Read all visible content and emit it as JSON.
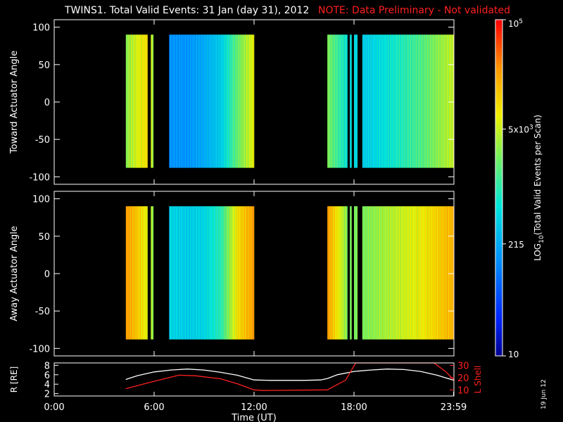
{
  "header": {
    "title": "TWINS1. Total Valid Events: 31 Jan (day  31), 2012",
    "note": "NOTE: Data Preliminary - Not validated"
  },
  "date_stamp": "19 Jun 12",
  "colors": {
    "note": "#ff2020",
    "background": "#000000",
    "axes": "#ffffff",
    "r_line": "#ffffff",
    "lshell_line": "#ff2020"
  },
  "chart_data": [
    {
      "type": "heatmap",
      "panel": "toward",
      "ylabel": "Toward Actuator Angle",
      "ylim": [
        -110,
        110
      ],
      "yticks": [
        100,
        50,
        0,
        -50,
        -100
      ],
      "xlim": [
        0,
        24
      ],
      "angle_range": [
        -88,
        90
      ],
      "data_intervals_hours": [
        [
          4.3,
          5.6
        ],
        [
          5.8,
          5.95
        ],
        [
          6.9,
          12.0
        ],
        [
          16.4,
          17.6
        ],
        [
          17.75,
          17.85
        ],
        [
          18.0,
          18.2
        ],
        [
          18.5,
          24.0
        ]
      ],
      "intensity_profile": [
        {
          "hour": 4.3,
          "level": 0.62
        },
        {
          "hour": 5.0,
          "level": 0.7
        },
        {
          "hour": 5.6,
          "level": 0.75
        },
        {
          "hour": 6.9,
          "level": 0.3
        },
        {
          "hour": 8.0,
          "level": 0.3
        },
        {
          "hour": 9.0,
          "level": 0.34
        },
        {
          "hour": 10.0,
          "level": 0.4
        },
        {
          "hour": 11.0,
          "level": 0.58
        },
        {
          "hour": 12.0,
          "level": 0.72
        },
        {
          "hour": 16.4,
          "level": 0.6
        },
        {
          "hour": 17.6,
          "level": 0.45
        },
        {
          "hour": 18.5,
          "level": 0.4
        },
        {
          "hour": 20.0,
          "level": 0.45
        },
        {
          "hour": 22.0,
          "level": 0.55
        },
        {
          "hour": 24.0,
          "level": 0.68
        }
      ]
    },
    {
      "type": "heatmap",
      "panel": "away",
      "ylabel": "Away Actuator Angle",
      "ylim": [
        -110,
        110
      ],
      "yticks": [
        100,
        50,
        0,
        -50,
        -100
      ],
      "xlim": [
        0,
        24
      ],
      "angle_range": [
        -88,
        90
      ],
      "data_intervals_hours": [
        [
          4.3,
          5.6
        ],
        [
          5.8,
          5.95
        ],
        [
          6.9,
          12.0
        ],
        [
          16.4,
          17.6
        ],
        [
          17.75,
          17.85
        ],
        [
          18.0,
          18.2
        ],
        [
          18.5,
          24.0
        ]
      ],
      "intensity_profile": [
        {
          "hour": 4.3,
          "level": 0.85
        },
        {
          "hour": 5.0,
          "level": 0.78
        },
        {
          "hour": 5.6,
          "level": 0.7
        },
        {
          "hour": 6.9,
          "level": 0.42
        },
        {
          "hour": 8.0,
          "level": 0.4
        },
        {
          "hour": 9.0,
          "level": 0.42
        },
        {
          "hour": 10.0,
          "level": 0.5
        },
        {
          "hour": 11.0,
          "level": 0.75
        },
        {
          "hour": 12.0,
          "level": 0.85
        },
        {
          "hour": 16.4,
          "level": 0.85
        },
        {
          "hour": 17.6,
          "level": 0.6
        },
        {
          "hour": 18.5,
          "level": 0.6
        },
        {
          "hour": 20.0,
          "level": 0.65
        },
        {
          "hour": 22.0,
          "level": 0.72
        },
        {
          "hour": 24.0,
          "level": 0.82
        }
      ]
    },
    {
      "type": "line",
      "panel": "orbit",
      "xlabel": "Time (UT)",
      "xlim": [
        0,
        24
      ],
      "xticks": [
        {
          "hour": 0,
          "label": "0:00"
        },
        {
          "hour": 6,
          "label": "6:00"
        },
        {
          "hour": 12,
          "label": "12:00"
        },
        {
          "hour": 18,
          "label": "18:00"
        },
        {
          "hour": 23.98,
          "label": "23:59"
        }
      ],
      "left_axis": {
        "label": "R [RE]",
        "ylim": [
          1.5,
          8.5
        ],
        "ticks": [
          2,
          4,
          6,
          8
        ]
      },
      "right_axis": {
        "label": "L Shell",
        "ylim": [
          5,
          32
        ],
        "ticks": [
          10,
          20,
          30
        ]
      },
      "series": [
        {
          "axis": "left",
          "color": "#ffffff",
          "x": [
            4.3,
            5,
            6,
            7,
            8,
            9,
            10,
            11,
            12,
            13,
            14,
            15,
            16,
            16.4,
            17,
            18,
            19,
            20,
            21,
            22,
            23,
            24
          ],
          "y": [
            5.0,
            5.8,
            6.6,
            7.0,
            7.2,
            7.0,
            6.5,
            5.9,
            4.9,
            4.8,
            4.8,
            4.8,
            4.9,
            5.2,
            6.0,
            6.7,
            7.0,
            7.2,
            7.1,
            6.7,
            5.9,
            4.8
          ]
        },
        {
          "axis": "right",
          "color": "#ff2020",
          "x": [
            4.3,
            6,
            7.5,
            8.5,
            10,
            11,
            12,
            12.5,
            16.4,
            17.5,
            18.1,
            22.8,
            23.5,
            24
          ],
          "y": [
            11,
            17,
            22,
            21.5,
            19,
            15,
            10,
            9.5,
            10,
            18,
            32,
            32,
            25,
            18
          ]
        }
      ]
    }
  ],
  "colorbar": {
    "label": "LOG10(Total Valid Events per Scan)",
    "tick_labels": [
      "10^5",
      "5x10^3",
      "215",
      "10"
    ],
    "tick_values": [
      100000,
      5000,
      215,
      10
    ],
    "range": [
      10,
      100000
    ]
  }
}
